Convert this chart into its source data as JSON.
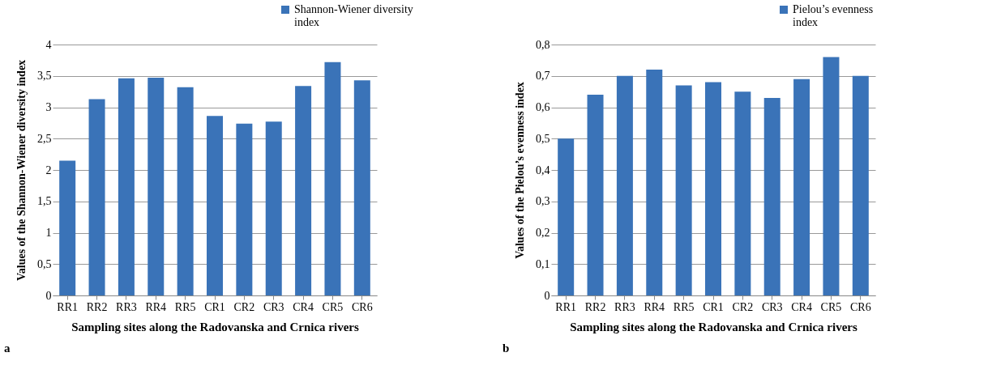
{
  "chart_data": [
    {
      "type": "bar",
      "categories": [
        "RR1",
        "RR2",
        "RR3",
        "RR4",
        "RR5",
        "CR1",
        "CR2",
        "CR3",
        "CR4",
        "CR5",
        "CR6"
      ],
      "series": [
        {
          "name": "Shannon-Wiener diversity index",
          "color": "#3a73b8",
          "values": [
            2.15,
            3.13,
            3.46,
            3.47,
            3.32,
            2.86,
            2.74,
            2.77,
            3.34,
            3.72,
            3.43
          ]
        }
      ],
      "xlabel": "Sampling sites along the Radovanska and Crnica rivers",
      "ylabel": "Values of the Shannon-Wiener diversity index",
      "ylim": [
        0,
        4
      ],
      "yticks": [
        0,
        {
          "value": 0.5,
          "label": "0,5"
        },
        1,
        {
          "value": 1.5,
          "label": "1,5"
        },
        2,
        {
          "value": 2.5,
          "label": "2,5"
        },
        3,
        {
          "value": 3.5,
          "label": "3,5"
        },
        4
      ],
      "grid": "y",
      "legend": "top right",
      "annotations": [
        "a"
      ]
    },
    {
      "type": "bar",
      "categories": [
        "RR1",
        "RR2",
        "RR3",
        "RR4",
        "RR5",
        "CR1",
        "CR2",
        "CR3",
        "CR4",
        "CR5",
        "CR6"
      ],
      "series": [
        {
          "name": "Pielou’s evenness index",
          "color": "#3a73b8",
          "values": [
            0.5,
            0.64,
            0.7,
            0.72,
            0.67,
            0.68,
            0.65,
            0.63,
            0.69,
            0.76,
            0.7
          ]
        }
      ],
      "xlabel": "Sampling sites along the Radovanska and Crnica rivers",
      "ylabel": "Values of the Pielou’s evenness index",
      "ylim": [
        0,
        0.8
      ],
      "yticks": [
        0,
        {
          "value": 0.1,
          "label": "0,1"
        },
        {
          "value": 0.2,
          "label": "0,2"
        },
        {
          "value": 0.3,
          "label": "0,3"
        },
        {
          "value": 0.4,
          "label": "0,4"
        },
        {
          "value": 0.5,
          "label": "0,5"
        },
        {
          "value": 0.6,
          "label": "0,6"
        },
        {
          "value": 0.7,
          "label": "0,7"
        },
        {
          "value": 0.8,
          "label": "0,8"
        }
      ],
      "grid": "y",
      "legend": "top right",
      "annotations": [
        "b"
      ]
    }
  ]
}
